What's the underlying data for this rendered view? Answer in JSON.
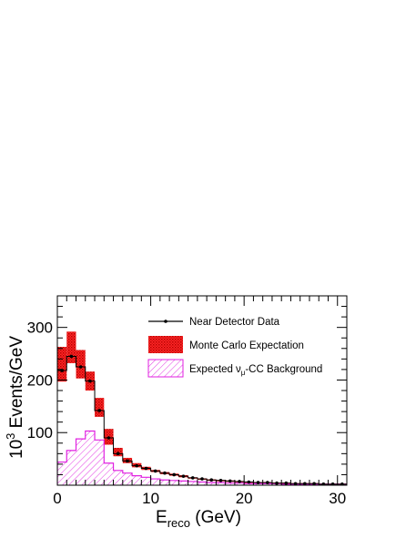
{
  "chart_data": {
    "type": "bar",
    "x_bin_width": 1,
    "xlim": [
      0,
      31
    ],
    "ylim": [
      0,
      360
    ],
    "xticks": [
      0,
      10,
      20,
      30
    ],
    "yticks": [
      100,
      200,
      300
    ],
    "xlabel": {
      "main": "E",
      "sub": "reco",
      "unit": " (GeV)"
    },
    "ylabel": {
      "base": "10",
      "exp": "3",
      "rest": " Events/GeV"
    },
    "legend_position": "top-right",
    "series": [
      {
        "name": "Near Detector Data",
        "kind": "points",
        "color": "#000000",
        "x": [
          0.5,
          1.5,
          2.5,
          3.5,
          4.5,
          5.5,
          6.5,
          7.5,
          8.5,
          9.5,
          10.5,
          11.5,
          12.5,
          13.5,
          14.5,
          15.5,
          16.5,
          17.5,
          18.5,
          19.5,
          20.5,
          21.5,
          22.5,
          23.5,
          24.5,
          25.5,
          26.5,
          27.5,
          28.5,
          29.5,
          30.5
        ],
        "values": [
          218,
          245,
          225,
          198,
          142,
          90,
          60,
          46,
          37,
          32,
          27,
          23,
          20,
          17,
          14,
          12,
          10,
          9,
          8,
          7,
          6,
          5,
          5,
          4,
          4,
          3,
          3,
          3,
          2,
          2,
          2
        ]
      },
      {
        "name": "Monte Carlo Expectation",
        "kind": "error-band",
        "color": "#e8202a",
        "x": [
          0.5,
          1.5,
          2.5,
          3.5,
          4.5,
          5.5,
          6.5,
          7.5,
          8.5,
          9.5,
          10.5,
          11.5,
          12.5,
          13.5,
          14.5,
          15.5,
          16.5,
          17.5,
          18.5,
          19.5,
          20.5,
          21.5,
          22.5,
          23.5,
          24.5,
          25.5,
          26.5,
          27.5,
          28.5,
          29.5,
          30.5
        ],
        "values": [
          230,
          262,
          230,
          198,
          148,
          92,
          63,
          47,
          38,
          32,
          27,
          23,
          20,
          17,
          14,
          12,
          10,
          9,
          8,
          7,
          6,
          5,
          5,
          4,
          4,
          3,
          3,
          3,
          2,
          2,
          2
        ],
        "errors": [
          33,
          30,
          27,
          18,
          18,
          15,
          8,
          5,
          4,
          3,
          2,
          2,
          2,
          2,
          1,
          1,
          1,
          1,
          1,
          1,
          1,
          1,
          1,
          1,
          1,
          1,
          1,
          1,
          1,
          1,
          1
        ]
      },
      {
        "name_parts": [
          "Expected",
          "ν",
          "μ",
          "-CC Background"
        ],
        "kind": "hatched-histogram",
        "color": "#e020e0",
        "x": [
          0.5,
          1.5,
          2.5,
          3.5,
          4.5,
          5.5,
          6.5,
          7.5,
          8.5,
          9.5,
          10.5,
          11.5,
          12.5,
          13.5,
          14.5,
          15.5,
          16.5,
          17.5,
          18.5,
          19.5,
          20.5,
          21.5,
          22.5,
          23.5,
          24.5,
          25.5,
          26.5,
          27.5,
          28.5,
          29.5,
          30.5
        ],
        "values": [
          44,
          66,
          88,
          103,
          86,
          42,
          28,
          23,
          18,
          15,
          12,
          10,
          9,
          8,
          7,
          6,
          5,
          5,
          4,
          4,
          3,
          3,
          3,
          3,
          2,
          2,
          2,
          2,
          2,
          2,
          2
        ]
      }
    ]
  }
}
